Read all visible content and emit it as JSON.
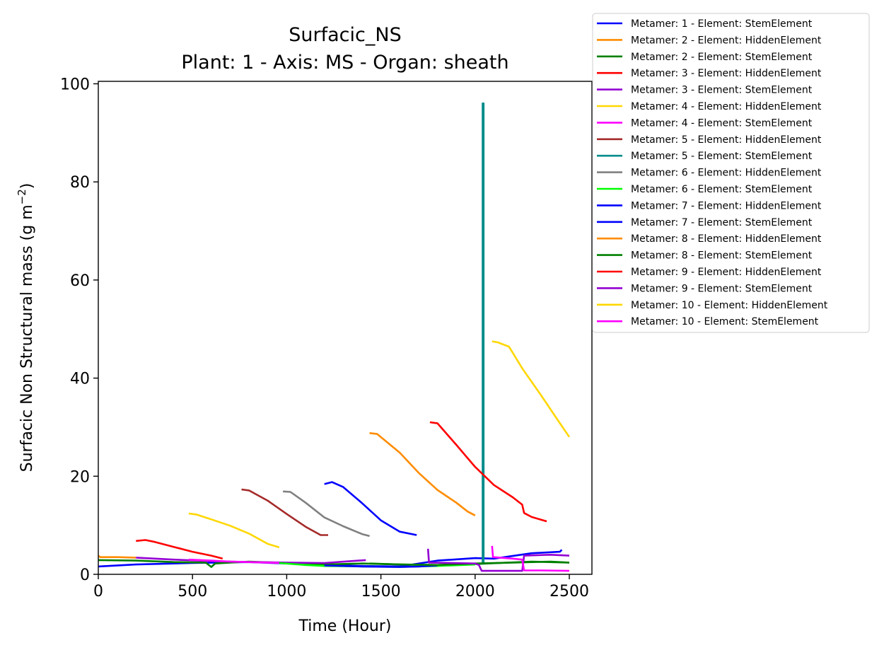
{
  "chart_data": {
    "type": "line",
    "title": "Surfacic_NS",
    "subtitle": "Plant: 1 - Axis: MS - Organ: sheath",
    "xlabel": "Time (Hour)",
    "ylabel": "Surfacic Non Structural mass (g m",
    "ylabel_unit_exponent": "−2",
    "ylabel_close": ")",
    "xlim": [
      0,
      2620
    ],
    "ylim": [
      0,
      100.5
    ],
    "xticks": [
      0,
      500,
      1000,
      1500,
      2000,
      2500
    ],
    "yticks": [
      0,
      20,
      40,
      60,
      80,
      100
    ],
    "grid": false,
    "legend_position": "outside-top-right",
    "series": [
      {
        "name": "Metamer: 1 - Element: StemElement",
        "color": "#0000ff",
        "points": [
          [
            0,
            1.6
          ],
          [
            200,
            2.0
          ],
          [
            500,
            2.3
          ],
          [
            800,
            2.5
          ],
          [
            1000,
            2.2
          ],
          [
            1200,
            1.9
          ],
          [
            1400,
            1.7
          ],
          [
            1600,
            1.6
          ],
          [
            1800,
            2.8
          ],
          [
            2000,
            3.3
          ],
          [
            2100,
            3.2
          ],
          [
            2300,
            4.3
          ],
          [
            2450,
            4.6
          ],
          [
            2460,
            5.0
          ]
        ]
      },
      {
        "name": "Metamer: 2 - Element: HiddenElement",
        "color": "#ff8c00",
        "points": [
          [
            0,
            3.8
          ],
          [
            10,
            3.5
          ],
          [
            100,
            3.5
          ],
          [
            200,
            3.4
          ]
        ]
      },
      {
        "name": "Metamer: 2 - Element: StemElement",
        "color": "#008000",
        "points": [
          [
            0,
            2.9
          ],
          [
            200,
            2.8
          ],
          [
            400,
            2.5
          ],
          [
            570,
            2.4
          ],
          [
            600,
            1.5
          ],
          [
            620,
            2.2
          ],
          [
            800,
            2.6
          ],
          [
            1000,
            2.3
          ],
          [
            1200,
            2.0
          ],
          [
            1400,
            2.2
          ],
          [
            1600,
            2.0
          ],
          [
            1800,
            1.9
          ],
          [
            2000,
            2.1
          ],
          [
            2300,
            2.6
          ],
          [
            2500,
            2.4
          ]
        ]
      },
      {
        "name": "Metamer: 3 - Element: HiddenElement",
        "color": "#ff0000",
        "points": [
          [
            200,
            6.8
          ],
          [
            250,
            7.0
          ],
          [
            300,
            6.6
          ],
          [
            400,
            5.6
          ],
          [
            500,
            4.6
          ],
          [
            600,
            3.8
          ],
          [
            660,
            3.2
          ]
        ]
      },
      {
        "name": "Metamer: 3 - Element: StemElement",
        "color": "#9400d3",
        "points": [
          [
            200,
            3.4
          ],
          [
            400,
            3.0
          ],
          [
            600,
            2.7
          ],
          [
            800,
            2.5
          ],
          [
            1000,
            2.4
          ],
          [
            1200,
            2.3
          ],
          [
            1420,
            2.9
          ]
        ]
      },
      {
        "name": "Metamer: 4 - Element: HiddenElement",
        "color": "#ffd700",
        "points": [
          [
            480,
            12.4
          ],
          [
            520,
            12.2
          ],
          [
            600,
            11.2
          ],
          [
            700,
            9.9
          ],
          [
            800,
            8.3
          ],
          [
            900,
            6.2
          ],
          [
            960,
            5.5
          ]
        ]
      },
      {
        "name": "Metamer: 4 - Element: StemElement",
        "color": "#ff00ff",
        "points": [
          [
            480,
            3.0
          ],
          [
            600,
            2.8
          ],
          [
            700,
            2.6
          ],
          [
            800,
            2.5
          ],
          [
            900,
            2.4
          ],
          [
            960,
            2.3
          ]
        ]
      },
      {
        "name": "Metamer: 5 - Element: HiddenElement",
        "color": "#a52a2a",
        "points": [
          [
            760,
            17.3
          ],
          [
            800,
            17.1
          ],
          [
            900,
            15.0
          ],
          [
            1000,
            12.3
          ],
          [
            1100,
            9.7
          ],
          [
            1180,
            8.0
          ],
          [
            1220,
            8.0
          ]
        ]
      },
      {
        "name": "Metamer: 5 - Element: StemElement",
        "color": "#008b8b",
        "points": [
          [
            2040,
            2.0
          ],
          [
            2040,
            96.0
          ],
          [
            2045,
            96.0
          ],
          [
            2045,
            2.0
          ]
        ]
      },
      {
        "name": "Metamer: 6 - Element: HiddenElement",
        "color": "#808080",
        "points": [
          [
            980,
            16.9
          ],
          [
            1020,
            16.8
          ],
          [
            1100,
            14.6
          ],
          [
            1200,
            11.6
          ],
          [
            1300,
            9.8
          ],
          [
            1400,
            8.2
          ],
          [
            1440,
            7.8
          ]
        ]
      },
      {
        "name": "Metamer: 6 - Element: StemElement",
        "color": "#00ff00",
        "points": [
          [
            960,
            2.3
          ],
          [
            1100,
            1.9
          ],
          [
            1200,
            1.7
          ],
          [
            1400,
            1.6
          ],
          [
            1600,
            1.5
          ],
          [
            1800,
            1.7
          ],
          [
            2000,
            2.0
          ]
        ]
      },
      {
        "name": "Metamer: 7 - Element: HiddenElement",
        "color": "#0000ff",
        "points": [
          [
            1200,
            18.4
          ],
          [
            1240,
            18.8
          ],
          [
            1300,
            17.8
          ],
          [
            1400,
            14.5
          ],
          [
            1500,
            11.0
          ],
          [
            1600,
            8.7
          ],
          [
            1690,
            8.0
          ]
        ]
      },
      {
        "name": "Metamer: 7 - Element: StemElement",
        "color": "#0000ff",
        "points": [
          [
            1200,
            1.8
          ],
          [
            1400,
            1.6
          ],
          [
            1600,
            1.5
          ],
          [
            1700,
            1.6
          ],
          [
            1800,
            1.8
          ]
        ]
      },
      {
        "name": "Metamer: 8 - Element: HiddenElement",
        "color": "#ff8c00",
        "points": [
          [
            1440,
            28.8
          ],
          [
            1480,
            28.6
          ],
          [
            1600,
            24.8
          ],
          [
            1700,
            20.7
          ],
          [
            1800,
            17.2
          ],
          [
            1900,
            14.6
          ],
          [
            1960,
            12.8
          ],
          [
            2000,
            12.0
          ]
        ]
      },
      {
        "name": "Metamer: 8 - Element: StemElement",
        "color": "#008000",
        "points": [
          [
            1440,
            2.2
          ],
          [
            1600,
            2.0
          ],
          [
            1800,
            1.9
          ],
          [
            2000,
            2.2
          ],
          [
            2200,
            2.4
          ],
          [
            2400,
            2.6
          ],
          [
            2500,
            2.4
          ]
        ]
      },
      {
        "name": "Metamer: 9 - Element: HiddenElement",
        "color": "#ff0000",
        "points": [
          [
            1760,
            31.0
          ],
          [
            1800,
            30.8
          ],
          [
            1900,
            26.4
          ],
          [
            2000,
            21.9
          ],
          [
            2100,
            18.2
          ],
          [
            2200,
            15.7
          ],
          [
            2250,
            14.2
          ],
          [
            2260,
            12.5
          ],
          [
            2300,
            11.7
          ],
          [
            2380,
            10.8
          ]
        ]
      },
      {
        "name": "Metamer: 9 - Element: StemElement",
        "color": "#9400d3",
        "points": [
          [
            1750,
            5.2
          ],
          [
            1755,
            2.4
          ],
          [
            2000,
            2.2
          ],
          [
            2020,
            1.9
          ],
          [
            2035,
            0.7
          ],
          [
            2250,
            0.7
          ],
          [
            2260,
            3.8
          ],
          [
            2400,
            4.0
          ],
          [
            2500,
            3.8
          ]
        ]
      },
      {
        "name": "Metamer: 10 - Element: HiddenElement",
        "color": "#ffd700",
        "points": [
          [
            2090,
            47.5
          ],
          [
            2120,
            47.3
          ],
          [
            2180,
            46.4
          ],
          [
            2250,
            42.0
          ],
          [
            2350,
            36.5
          ],
          [
            2450,
            30.8
          ],
          [
            2500,
            28.0
          ]
        ]
      },
      {
        "name": "Metamer: 10 - Element: StemElement",
        "color": "#ff00ff",
        "points": [
          [
            2090,
            5.8
          ],
          [
            2095,
            3.5
          ],
          [
            2200,
            3.2
          ],
          [
            2250,
            3.0
          ],
          [
            2260,
            0.8
          ],
          [
            2350,
            0.8
          ],
          [
            2500,
            0.7
          ]
        ]
      }
    ]
  }
}
